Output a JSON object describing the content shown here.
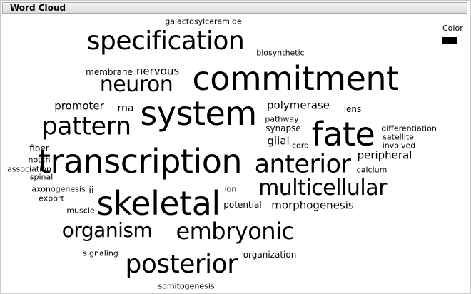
{
  "panel": {
    "title": "Word Cloud"
  },
  "legend": {
    "title": "Color",
    "swatch_color": "#000000"
  },
  "words": [
    {
      "text": "galactosylceramide"
    },
    {
      "text": "specification"
    },
    {
      "text": "biosynthetic"
    },
    {
      "text": "membrane"
    },
    {
      "text": "nervous"
    },
    {
      "text": "neuron"
    },
    {
      "text": "commitment"
    },
    {
      "text": "promoter"
    },
    {
      "text": "rna"
    },
    {
      "text": "system"
    },
    {
      "text": "polymerase"
    },
    {
      "text": "lens"
    },
    {
      "text": "pattern"
    },
    {
      "text": "pathway"
    },
    {
      "text": "synapse"
    },
    {
      "text": "fate"
    },
    {
      "text": "differentiation"
    },
    {
      "text": "satellite"
    },
    {
      "text": "glial"
    },
    {
      "text": "cord"
    },
    {
      "text": "involved"
    },
    {
      "text": "fiber"
    },
    {
      "text": "notch"
    },
    {
      "text": "transcription"
    },
    {
      "text": "anterior"
    },
    {
      "text": "peripheral"
    },
    {
      "text": "association"
    },
    {
      "text": "calcium"
    },
    {
      "text": "spinal"
    },
    {
      "text": "axonogenesis"
    },
    {
      "text": "ii"
    },
    {
      "text": "ion"
    },
    {
      "text": "multicellular"
    },
    {
      "text": "export"
    },
    {
      "text": "skeletal"
    },
    {
      "text": "potential"
    },
    {
      "text": "morphogenesis"
    },
    {
      "text": "muscle"
    },
    {
      "text": "organism"
    },
    {
      "text": "embryonic"
    },
    {
      "text": "signaling"
    },
    {
      "text": "organization"
    },
    {
      "text": "posterior"
    },
    {
      "text": "somitogenesis"
    }
  ]
}
